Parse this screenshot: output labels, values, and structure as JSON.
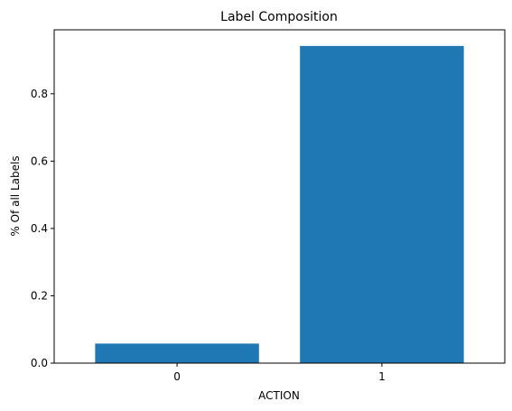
{
  "chart_data": {
    "type": "bar",
    "title": "Label Composition",
    "xlabel": "ACTION",
    "ylabel": "% Of all Labels",
    "categories": [
      "0",
      "1"
    ],
    "values": [
      0.058,
      0.942
    ],
    "ylim": [
      0,
      0.99
    ],
    "yticks": [
      0.0,
      0.2,
      0.4,
      0.6,
      0.8
    ],
    "ytick_labels": [
      "0.0",
      "0.2",
      "0.4",
      "0.6",
      "0.8"
    ],
    "grid": false,
    "bar_color": "#1f77b4"
  }
}
